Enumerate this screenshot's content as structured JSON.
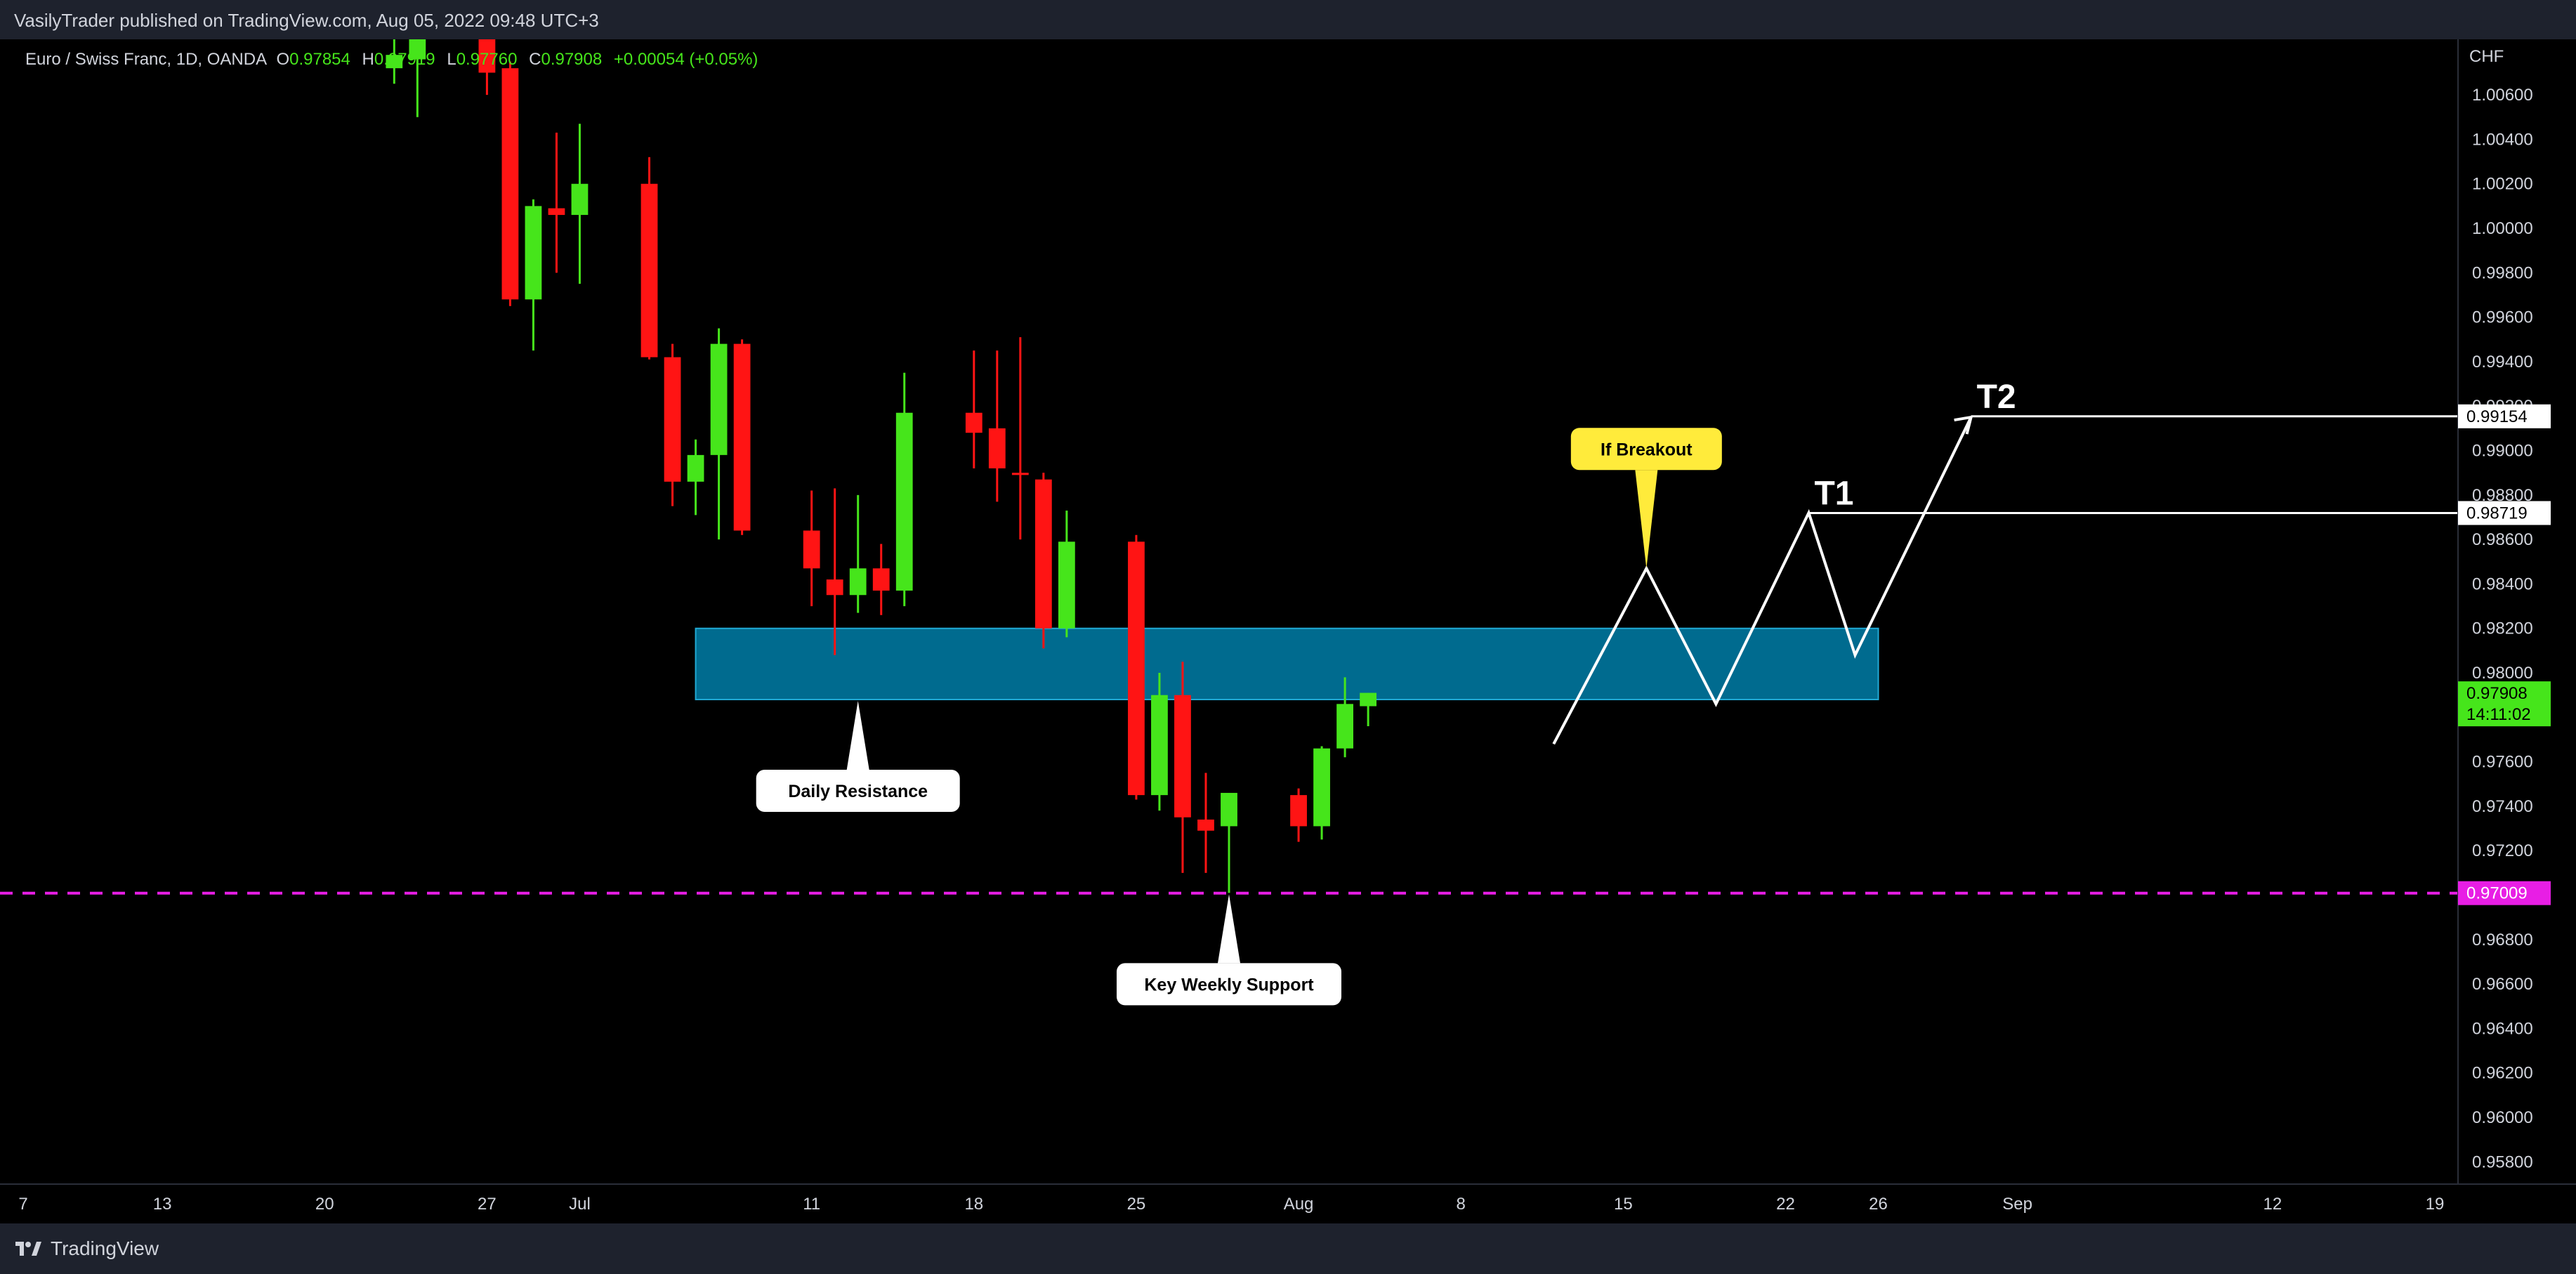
{
  "header": {
    "published": "VasilyTrader published on TradingView.com, Aug 05, 2022 09:48 UTC+3"
  },
  "footer": {
    "brand": "TradingView"
  },
  "colors": {
    "up": "#46e51b",
    "down": "#ff1414",
    "zone": "#006b8f",
    "zone_border": "#21a9d4",
    "support": "#e81ee5",
    "callout_yellow": "#ffeb3b"
  },
  "chart_data": {
    "type": "candlestick",
    "legend": {
      "symbol": "Euro / Swiss Franc, 1D, OANDA",
      "o_label": "O",
      "o": "0.97854",
      "h_label": "H",
      "h": "0.97919",
      "l_label": "L",
      "l": "0.97760",
      "c_label": "C",
      "c": "0.97908",
      "change": "+0.00054 (+0.05%)"
    },
    "y_axis": {
      "unit": "CHF",
      "range": [
        0.957,
        1.0085
      ],
      "ticks": [
        "1.00600",
        "1.00400",
        "1.00200",
        "1.00000",
        "0.99800",
        "0.99600",
        "0.99400",
        "0.99200",
        "0.99000",
        "0.98800",
        "0.98600",
        "0.98400",
        "0.98200",
        "0.98000",
        "0.97800",
        "0.97600",
        "0.97400",
        "0.97200",
        "0.97000",
        "0.96800",
        "0.96600",
        "0.96400",
        "0.96200",
        "0.96000",
        "0.95800"
      ]
    },
    "x_axis": {
      "range": [
        "2022-06-06",
        "2022-09-20"
      ],
      "ticks": [
        {
          "label": "7",
          "date": "2022-06-07"
        },
        {
          "label": "13",
          "date": "2022-06-13"
        },
        {
          "label": "20",
          "date": "2022-06-20"
        },
        {
          "label": "27",
          "date": "2022-06-27"
        },
        {
          "label": "Jul",
          "date": "2022-07-01"
        },
        {
          "label": "11",
          "date": "2022-07-11"
        },
        {
          "label": "18",
          "date": "2022-07-18"
        },
        {
          "label": "25",
          "date": "2022-07-25"
        },
        {
          "label": "Aug",
          "date": "2022-08-01"
        },
        {
          "label": "8",
          "date": "2022-08-08"
        },
        {
          "label": "15",
          "date": "2022-08-15"
        },
        {
          "label": "22",
          "date": "2022-08-22"
        },
        {
          "label": "26",
          "date": "2022-08-26"
        },
        {
          "label": "Sep",
          "date": "2022-09-01"
        },
        {
          "label": "12",
          "date": "2022-09-12"
        },
        {
          "label": "19",
          "date": "2022-09-19"
        }
      ]
    },
    "candles": [
      {
        "date": "2022-06-23",
        "o": 1.0072,
        "h": 1.0089,
        "l": 1.0065,
        "c": 1.0078
      },
      {
        "date": "2022-06-24",
        "o": 1.0076,
        "h": 1.0089,
        "l": 1.005,
        "c": 1.0085
      },
      {
        "date": "2022-06-27",
        "o": 1.009,
        "h": 1.01,
        "l": 1.006,
        "c": 1.007
      },
      {
        "date": "2022-06-28",
        "o": 1.0072,
        "h": 1.0075,
        "l": 0.9965,
        "c": 0.9968
      },
      {
        "date": "2022-06-29",
        "o": 0.9968,
        "h": 1.0013,
        "l": 0.9945,
        "c": 1.001
      },
      {
        "date": "2022-06-30",
        "o": 1.0009,
        "h": 1.0043,
        "l": 0.998,
        "c": 1.0006
      },
      {
        "date": "2022-07-01",
        "o": 1.0006,
        "h": 1.0047,
        "l": 0.9975,
        "c": 1.002
      },
      {
        "date": "2022-07-04",
        "o": 1.002,
        "h": 1.0032,
        "l": 0.9941,
        "c": 0.9942
      },
      {
        "date": "2022-07-05",
        "o": 0.9942,
        "h": 0.9948,
        "l": 0.9875,
        "c": 0.9886
      },
      {
        "date": "2022-07-06",
        "o": 0.9886,
        "h": 0.9905,
        "l": 0.9871,
        "c": 0.9898
      },
      {
        "date": "2022-07-07",
        "o": 0.9898,
        "h": 0.9955,
        "l": 0.986,
        "c": 0.9948
      },
      {
        "date": "2022-07-08",
        "o": 0.9948,
        "h": 0.995,
        "l": 0.9862,
        "c": 0.9864
      },
      {
        "date": "2022-07-11",
        "o": 0.9864,
        "h": 0.9882,
        "l": 0.983,
        "c": 0.9847
      },
      {
        "date": "2022-07-12",
        "o": 0.9842,
        "h": 0.9883,
        "l": 0.9808,
        "c": 0.9835
      },
      {
        "date": "2022-07-13",
        "o": 0.9835,
        "h": 0.988,
        "l": 0.9827,
        "c": 0.9847
      },
      {
        "date": "2022-07-14",
        "o": 0.9847,
        "h": 0.9858,
        "l": 0.9826,
        "c": 0.9837
      },
      {
        "date": "2022-07-15",
        "o": 0.9837,
        "h": 0.9935,
        "l": 0.983,
        "c": 0.9917
      },
      {
        "date": "2022-07-18",
        "o": 0.9917,
        "h": 0.9945,
        "l": 0.9892,
        "c": 0.9908
      },
      {
        "date": "2022-07-19",
        "o": 0.991,
        "h": 0.9945,
        "l": 0.9877,
        "c": 0.9892
      },
      {
        "date": "2022-07-20",
        "o": 0.989,
        "h": 0.9951,
        "l": 0.986,
        "c": 0.9889
      },
      {
        "date": "2022-07-21",
        "o": 0.9887,
        "h": 0.989,
        "l": 0.9811,
        "c": 0.982
      },
      {
        "date": "2022-07-22",
        "o": 0.982,
        "h": 0.9873,
        "l": 0.9816,
        "c": 0.9859
      },
      {
        "date": "2022-07-25",
        "o": 0.9859,
        "h": 0.9862,
        "l": 0.9743,
        "c": 0.9745
      },
      {
        "date": "2022-07-26",
        "o": 0.9745,
        "h": 0.98,
        "l": 0.9738,
        "c": 0.979
      },
      {
        "date": "2022-07-27",
        "o": 0.979,
        "h": 0.9805,
        "l": 0.971,
        "c": 0.9735
      },
      {
        "date": "2022-07-28",
        "o": 0.9734,
        "h": 0.9755,
        "l": 0.971,
        "c": 0.9729
      },
      {
        "date": "2022-07-29",
        "o": 0.9731,
        "h": 0.9746,
        "l": 0.9701,
        "c": 0.9746
      },
      {
        "date": "2022-08-01",
        "o": 0.9745,
        "h": 0.9748,
        "l": 0.9724,
        "c": 0.9731
      },
      {
        "date": "2022-08-02",
        "o": 0.9731,
        "h": 0.9767,
        "l": 0.9725,
        "c": 0.9766
      },
      {
        "date": "2022-08-03",
        "o": 0.9766,
        "h": 0.9798,
        "l": 0.9762,
        "c": 0.9786
      },
      {
        "date": "2022-08-04",
        "o": 0.9785,
        "h": 0.9791,
        "l": 0.9776,
        "c": 0.9791
      }
    ],
    "resistance_zone": {
      "from": "2022-07-06",
      "to": "2022-08-26",
      "low": 0.9788,
      "high": 0.982
    },
    "support_line": {
      "price": 0.97009,
      "label": "0.97009"
    },
    "projection": {
      "points": [
        {
          "date": "2022-08-12",
          "price": 0.9768
        },
        {
          "date": "2022-08-16",
          "price": 0.9847
        },
        {
          "date": "2022-08-19",
          "price": 0.9786
        },
        {
          "date": "2022-08-23",
          "price": 0.9872
        },
        {
          "date": "2022-08-25",
          "price": 0.9808
        },
        {
          "date": "2022-08-30",
          "price": 0.9915
        }
      ]
    },
    "targets": [
      {
        "label": "T1",
        "price": 0.98719,
        "price_label": "0.98719",
        "from": "2022-08-23"
      },
      {
        "label": "T2",
        "price": 0.99154,
        "price_label": "0.99154",
        "from": "2022-08-30"
      }
    ],
    "last_price": {
      "value": 0.97908,
      "label": "0.97908",
      "countdown": "14:11:02"
    },
    "annotations": [
      {
        "text": "Daily Resistance",
        "date": "2022-07-13",
        "price": 0.9788,
        "style": "white"
      },
      {
        "text": "Key Weekly Support",
        "date": "2022-07-29",
        "price": 0.9701,
        "style": "white"
      },
      {
        "text": "If Breakout",
        "date": "2022-08-16",
        "price": 0.9847,
        "style": "yellow"
      }
    ]
  }
}
